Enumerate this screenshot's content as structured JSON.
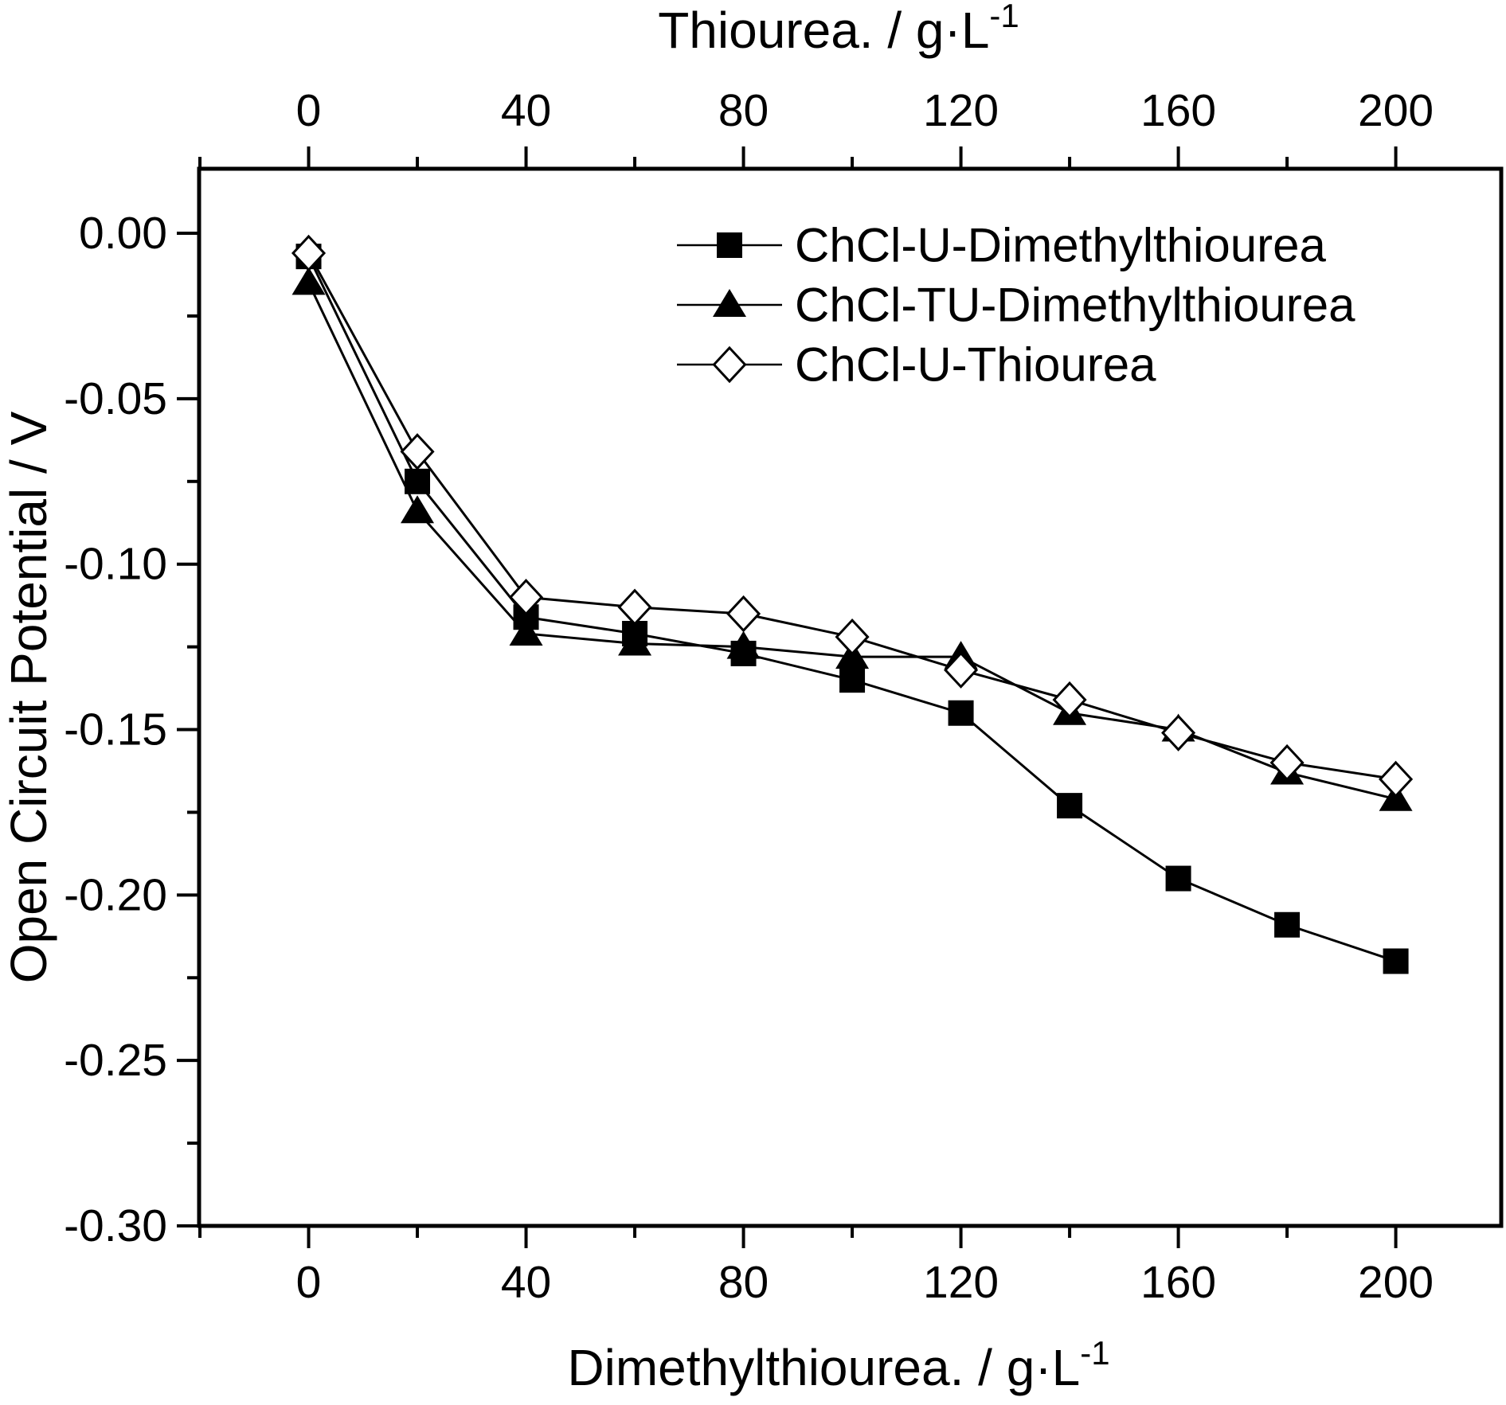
{
  "figure": {
    "background_color": "#ffffff",
    "ink_color": "#000000",
    "description": "Line chart of open circuit potential versus additive concentration for three deep eutectic solvent systems"
  },
  "chart_data": {
    "type": "line",
    "grid": false,
    "x": [
      0,
      20,
      40,
      60,
      80,
      100,
      120,
      140,
      160,
      180,
      200
    ],
    "series": [
      {
        "name": "ChCl-U-Dimethylthiourea",
        "marker": "filled-square",
        "color": "#000000",
        "values": [
          -0.007,
          -0.075,
          -0.116,
          -0.121,
          -0.127,
          -0.135,
          -0.145,
          -0.173,
          -0.195,
          -0.209,
          -0.22
        ]
      },
      {
        "name": "ChCl-TU-Dimethylthiourea",
        "marker": "filled-triangle",
        "color": "#000000",
        "values": [
          -0.015,
          -0.084,
          -0.121,
          -0.124,
          -0.125,
          -0.128,
          -0.128,
          -0.145,
          -0.15,
          -0.163,
          -0.171
        ]
      },
      {
        "name": "ChCl-U-Thiourea",
        "marker": "open-diamond",
        "color": "#000000",
        "values": [
          -0.006,
          -0.066,
          -0.11,
          -0.113,
          -0.115,
          -0.122,
          -0.132,
          -0.141,
          -0.151,
          -0.16,
          -0.165
        ]
      }
    ],
    "top_xlabel": {
      "text": "Thiourea. / g·L",
      "sup": "-1"
    },
    "bottom_xlabel": {
      "text": "Dimethylthiourea. / g·L",
      "sup": "-1"
    },
    "ylabel": "Open Circuit Potential / V",
    "x_major_ticks": [
      0,
      40,
      80,
      120,
      160,
      200
    ],
    "x_tick_labels": [
      "0",
      "40",
      "80",
      "120",
      "160",
      "200"
    ],
    "x_minor_ticks": [
      -20,
      20,
      60,
      100,
      140,
      180
    ],
    "y_major_ticks": [
      0,
      -0.05,
      -0.1,
      -0.15,
      -0.2,
      -0.25,
      -0.3
    ],
    "y_tick_labels": [
      "0.00",
      "-0.05",
      "-0.10",
      "-0.15",
      "-0.20",
      "-0.25",
      "-0.30"
    ],
    "y_minor_ticks": [
      -0.025,
      -0.075,
      -0.125,
      -0.175,
      -0.225,
      -0.275
    ],
    "xlim": [
      -20.15,
      219.4
    ],
    "ylim": [
      -0.3,
      0.0195
    ],
    "legend_position": "inside-top-center",
    "axes_shown": [
      "bottom",
      "top",
      "left"
    ],
    "right_border": true
  }
}
